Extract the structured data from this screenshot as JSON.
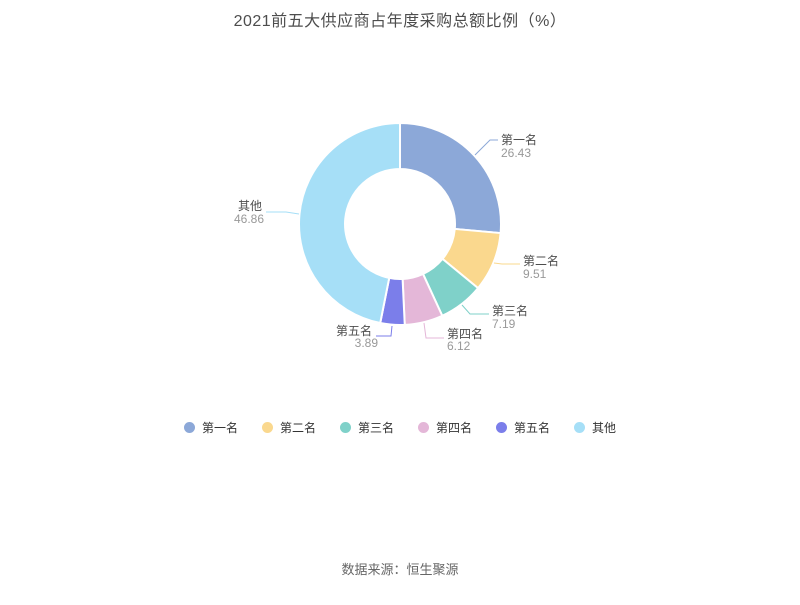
{
  "page": {
    "title": "2021前五大供应商占年度采购总额比例（%）",
    "footer": "数据来源：恒生聚源"
  },
  "chart_data": {
    "type": "pie",
    "subtype": "donut",
    "title": "2021前五大供应商占年度采购总额比例（%）",
    "unit": "%",
    "legend_position": "bottom",
    "label_style": {
      "name_color": "#4d4d4d",
      "value_color": "#999999"
    },
    "items": [
      {
        "name": "第一名",
        "value": 26.43,
        "color": "#8CA8D8"
      },
      {
        "name": "第二名",
        "value": 9.51,
        "color": "#FAD88E"
      },
      {
        "name": "第三名",
        "value": 7.19,
        "color": "#7FD1C9"
      },
      {
        "name": "第四名",
        "value": 6.12,
        "color": "#E4B7D8"
      },
      {
        "name": "第五名",
        "value": 3.89,
        "color": "#7B7EEA"
      },
      {
        "name": "其他",
        "value": 46.86,
        "color": "#A6DFF7"
      }
    ]
  }
}
